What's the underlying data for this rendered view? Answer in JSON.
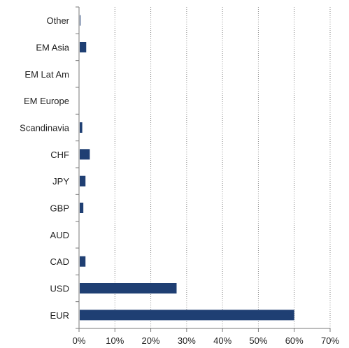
{
  "chart_data": {
    "type": "bar",
    "orientation": "horizontal",
    "title": "",
    "xlabel": "",
    "ylabel": "",
    "categories": [
      "EUR",
      "USD",
      "CAD",
      "AUD",
      "GBP",
      "JPY",
      "CHF",
      "Scandinavia",
      "EM Europe",
      "EM Lat Am",
      "EM Asia",
      "Other"
    ],
    "values": [
      60.0,
      27.2,
      1.8,
      0.0,
      1.2,
      1.8,
      3.0,
      0.9,
      0.0,
      0.0,
      2.0,
      0.4
    ],
    "xlim": [
      0,
      70
    ],
    "xticks": [
      "0%",
      "10%",
      "20%",
      "30%",
      "40%",
      "50%",
      "60%",
      "70%"
    ],
    "grid": "vertical-dotted",
    "legend": "none",
    "colors": {
      "bar": "#1f3f73",
      "grid": "#8a8a8a",
      "axis": "#7a7a7a"
    }
  }
}
